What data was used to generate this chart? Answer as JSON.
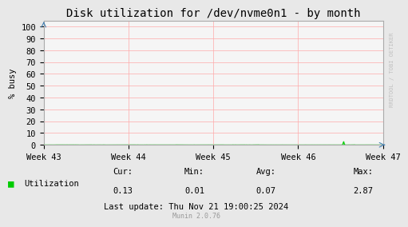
{
  "title": "Disk utilization for /dev/nvme0n1 - by month",
  "ylabel": "% busy",
  "bg_color": "#e8e8e8",
  "plot_bg_color": "#f5f5f5",
  "grid_color": "#ffaaaa",
  "border_color": "#aaaaaa",
  "line_color": "#00cc00",
  "yticks": [
    0,
    10,
    20,
    30,
    40,
    50,
    60,
    70,
    80,
    90,
    100
  ],
  "ylim": [
    0,
    105
  ],
  "xtick_labels": [
    "Week 43",
    "Week 44",
    "Week 45",
    "Week 46",
    "Week 47"
  ],
  "legend_label": "Utilization",
  "cur_val": "0.13",
  "min_val": "0.01",
  "avg_val": "0.07",
  "max_val": "2.87",
  "last_update": "Last update: Thu Nov 21 19:00:25 2024",
  "munin_version": "Munin 2.0.76",
  "watermark": "RRDTOOL / TOBI OETIKER",
  "title_fontsize": 10,
  "axis_label_fontsize": 7.5,
  "tick_fontsize": 7.5,
  "legend_fontsize": 7.5,
  "stats_fontsize": 7.5,
  "watermark_fontsize": 5
}
